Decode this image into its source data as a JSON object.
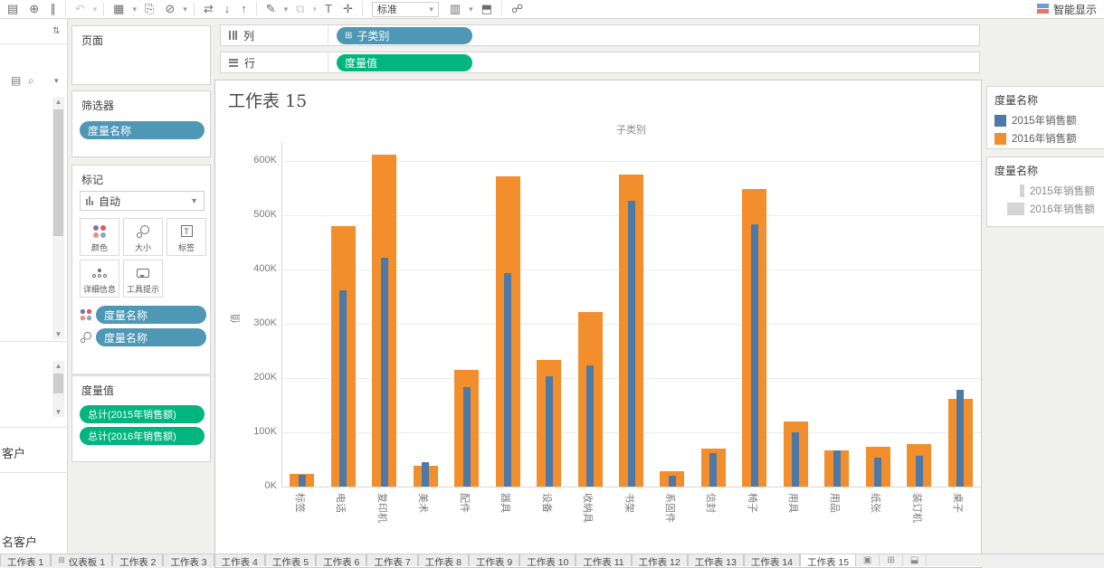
{
  "toolbar": {
    "fit": "标准",
    "show_me": "智能显示",
    "show_me_colors": [
      "#6b9bd2",
      "#e8726d"
    ],
    "icons": [
      {
        "name": "save-icon",
        "glyph": "▤"
      },
      {
        "name": "new-data-source-icon",
        "glyph": "⊕"
      },
      {
        "name": "pause-auto-updates-icon",
        "glyph": "∥"
      },
      {
        "sep": true
      },
      {
        "name": "undo-icon",
        "glyph": "↶",
        "dim": true
      },
      {
        "name": "redo-caret-icon",
        "glyph": "▾",
        "small": true,
        "dim": true
      },
      {
        "sep": true
      },
      {
        "name": "new-worksheet-icon",
        "glyph": "▦"
      },
      {
        "name": "new-worksheet-caret-icon",
        "glyph": "▾",
        "small": true
      },
      {
        "name": "duplicate-sheet-icon",
        "glyph": "⎘"
      },
      {
        "name": "clear-sheet-icon",
        "glyph": "⊘"
      },
      {
        "name": "clear-sheet-caret-icon",
        "glyph": "▾",
        "small": true
      },
      {
        "sep": true
      },
      {
        "name": "swap-rows-columns-icon",
        "glyph": "⇄"
      },
      {
        "name": "sort-ascending-icon",
        "glyph": "↓"
      },
      {
        "name": "sort-descending-icon",
        "glyph": "↑"
      },
      {
        "sep": true
      },
      {
        "name": "highlight-icon",
        "glyph": "✎"
      },
      {
        "name": "highlight-caret-icon",
        "glyph": "▾",
        "small": true
      },
      {
        "name": "group-members-icon",
        "glyph": "⧉",
        "dim": true
      },
      {
        "name": "group-caret-icon",
        "glyph": "▾",
        "small": true,
        "dim": true
      },
      {
        "name": "show-mark-labels-icon",
        "glyph": "T"
      },
      {
        "name": "fix-axes-icon",
        "glyph": "✛"
      }
    ],
    "icons_right": [
      {
        "name": "show-hide-cards-icon",
        "glyph": "▥"
      },
      {
        "name": "show-hide-cards-caret-icon",
        "glyph": "▾",
        "small": true
      },
      {
        "name": "presentation-mode-icon",
        "glyph": "⬒"
      },
      {
        "sep": true
      },
      {
        "name": "share-workbook-icon",
        "glyph": "☍"
      }
    ]
  },
  "left_pane": {
    "partials": [
      "客户",
      "名客户"
    ]
  },
  "shelves": {
    "pages_label": "页面",
    "columns_label": "列",
    "rows_label": "行",
    "columns_pill": "子类别",
    "rows_pill": "度量值"
  },
  "filters": {
    "title": "筛选器",
    "pill": "度量名称"
  },
  "marks": {
    "title": "标记",
    "type": "自动",
    "buttons": [
      {
        "label": "颜色"
      },
      {
        "label": "大小"
      },
      {
        "label": "标签"
      },
      {
        "label": "详细信息"
      },
      {
        "label": "工具提示"
      }
    ],
    "color_dot_colors": [
      "#8172b2",
      "#e15759",
      "#ee8d7c",
      "#88a6cc"
    ],
    "pills": [
      "度量名称",
      "度量名称"
    ]
  },
  "measure_values": {
    "title": "度量值",
    "pills": [
      "总计(2015年销售额)",
      "总计(2016年销售额)"
    ]
  },
  "worksheet": {
    "title": "工作表 15",
    "header": "子类别",
    "ylabel": "值"
  },
  "chart_data": {
    "type": "bar",
    "title": "子类别",
    "xlabel": "子类别",
    "ylabel": "值",
    "ylim": [
      0,
      650000
    ],
    "grid": true,
    "categories": [
      "标签",
      "电话",
      "复印机",
      "美术",
      "配件",
      "器具",
      "设备",
      "收纳具",
      "书架",
      "系固件",
      "信封",
      "椅子",
      "用具",
      "用品",
      "纸张",
      "装订机",
      "桌子"
    ],
    "series": [
      {
        "name": "2015年销售额",
        "color": "#4e79a7",
        "values": [
          22000,
          362000,
          422000,
          45000,
          183000,
          393000,
          203000,
          223000,
          527000,
          20000,
          62000,
          483000,
          100000,
          67000,
          53000,
          57000,
          178000
        ]
      },
      {
        "name": "2016年销售额",
        "color": "#f28e2b",
        "values": [
          23000,
          480000,
          612000,
          38000,
          215000,
          572000,
          233000,
          322000,
          575000,
          28000,
          70000,
          548000,
          120000,
          66000,
          73000,
          78000,
          162000
        ]
      }
    ],
    "yticks": [
      {
        "label": "0K",
        "v": 0
      },
      {
        "label": "100K",
        "v": 100000
      },
      {
        "label": "200K",
        "v": 200000
      },
      {
        "label": "300K",
        "v": 300000
      },
      {
        "label": "400K",
        "v": 400000
      },
      {
        "label": "500K",
        "v": 500000
      },
      {
        "label": "600K",
        "v": 600000
      }
    ]
  },
  "legend_color": {
    "title": "度量名称",
    "items": [
      {
        "label": "2015年销售额",
        "color": "#4e79a7"
      },
      {
        "label": "2016年销售额",
        "color": "#f28e2b"
      }
    ]
  },
  "legend_size": {
    "title": "度量名称",
    "items": [
      {
        "label": "2015年销售额"
      },
      {
        "label": "2016年销售额"
      }
    ]
  },
  "tabs": {
    "items": [
      {
        "label": "工作表 1"
      },
      {
        "label": "仪表板 1",
        "icon": "dashboard"
      },
      {
        "label": "工作表 2"
      },
      {
        "label": "工作表 3"
      },
      {
        "label": "工作表 4"
      },
      {
        "label": "工作表 5"
      },
      {
        "label": "工作表 6"
      },
      {
        "label": "工作表 7"
      },
      {
        "label": "工作表 8"
      },
      {
        "label": "工作表 9"
      },
      {
        "label": "工作表 10"
      },
      {
        "label": "工作表 11"
      },
      {
        "label": "工作表 12"
      },
      {
        "label": "工作表 13"
      },
      {
        "label": "工作表 14"
      },
      {
        "label": "工作表 15",
        "active": true
      }
    ],
    "buttons": [
      {
        "name": "new-worksheet-tab-button",
        "glyph": "▣"
      },
      {
        "name": "new-dashboard-tab-button",
        "glyph": "⊞"
      },
      {
        "name": "new-story-tab-button",
        "glyph": "⬓"
      }
    ]
  }
}
